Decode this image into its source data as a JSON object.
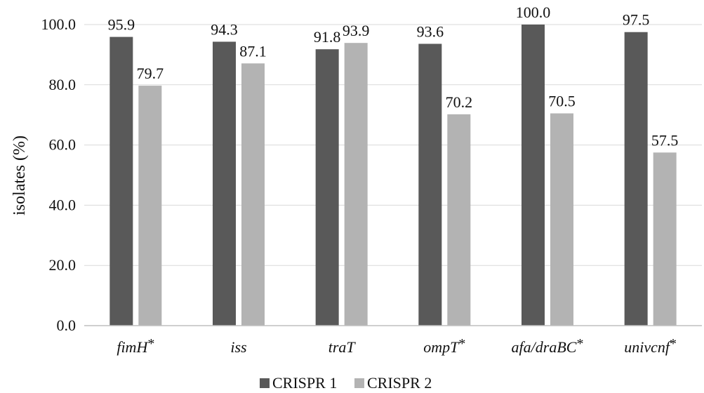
{
  "chart_data": {
    "type": "bar",
    "categories": [
      "fimH*",
      "iss",
      "traT",
      "ompT*",
      "afa/draBC*",
      "univcnf*"
    ],
    "series": [
      {
        "name": "CRISPR 1",
        "values": [
          95.9,
          94.3,
          91.8,
          93.6,
          100.0,
          97.5
        ],
        "color": "#595959"
      },
      {
        "name": "CRISPR 2",
        "values": [
          79.7,
          87.1,
          93.9,
          70.2,
          70.5,
          57.5
        ],
        "color": "#b3b3b3"
      }
    ],
    "value_labels": [
      [
        "95.9",
        "94.3",
        "91.8",
        "93.6",
        "100.0",
        "97.5"
      ],
      [
        "79.7",
        "87.1",
        "93.9",
        "70.2",
        "70.5",
        "57.5"
      ]
    ],
    "yticks": [
      "0.0",
      "20.0",
      "40.0",
      "60.0",
      "80.0",
      "100.0"
    ],
    "ylabel": "isolates (%)",
    "xlabel": "",
    "title": "",
    "ylim": [
      0,
      100
    ],
    "grid": true,
    "legend": "bottom-center",
    "grid_color": "#d9d9d9",
    "axis_color": "#bfbfbf"
  }
}
